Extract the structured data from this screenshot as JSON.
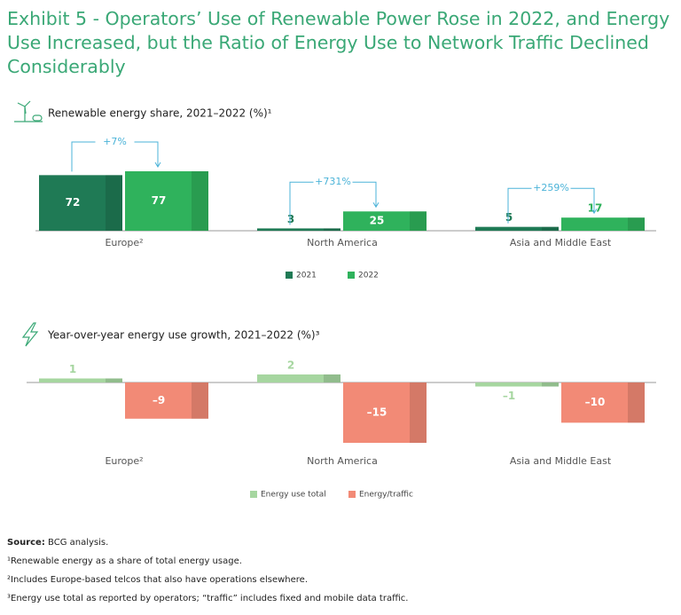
{
  "title": "Exhibit 5 - Operators’ Use of Renewable Power Rose in 2022, and Energy Use Increased, but the Ratio of Energy Use to Network Traffic Declined Considerably",
  "chart_data": [
    {
      "type": "bar",
      "subtitle": "Renewable energy share, 2021–2022 (%)¹",
      "categories": [
        "Europe²",
        "North America",
        "Asia and Middle East"
      ],
      "series": [
        {
          "name": "2021",
          "color": "#1f7a55",
          "values": [
            72,
            3,
            5
          ]
        },
        {
          "name": "2022",
          "color": "#2fb25c",
          "values": [
            77,
            25,
            17
          ]
        }
      ],
      "annotations": [
        "+7%",
        "+731%",
        "+259%"
      ]
    },
    {
      "type": "bar",
      "subtitle": "Year-over-year energy use growth, 2021–2022 (%)³",
      "categories": [
        "Europe²",
        "North America",
        "Asia and Middle East"
      ],
      "series": [
        {
          "name": "Energy use total",
          "color": "#a6d6a0",
          "values": [
            1,
            2,
            -1
          ],
          "value_labels": [
            "1",
            "2",
            "–1"
          ]
        },
        {
          "name": "Energy/traffic",
          "color": "#f28a76",
          "values": [
            -9,
            -15,
            -10
          ],
          "value_labels": [
            "–9",
            "–15",
            "–10"
          ]
        }
      ]
    }
  ],
  "source_label": "Source:",
  "source": "BCG analysis.",
  "footnotes": [
    "¹Renewable energy as a share of total energy usage.",
    "²Includes Europe-based telcos that also have operations elsewhere.",
    "³Energy use total as reported by operators; “traffic” includes fixed and mobile data traffic."
  ]
}
